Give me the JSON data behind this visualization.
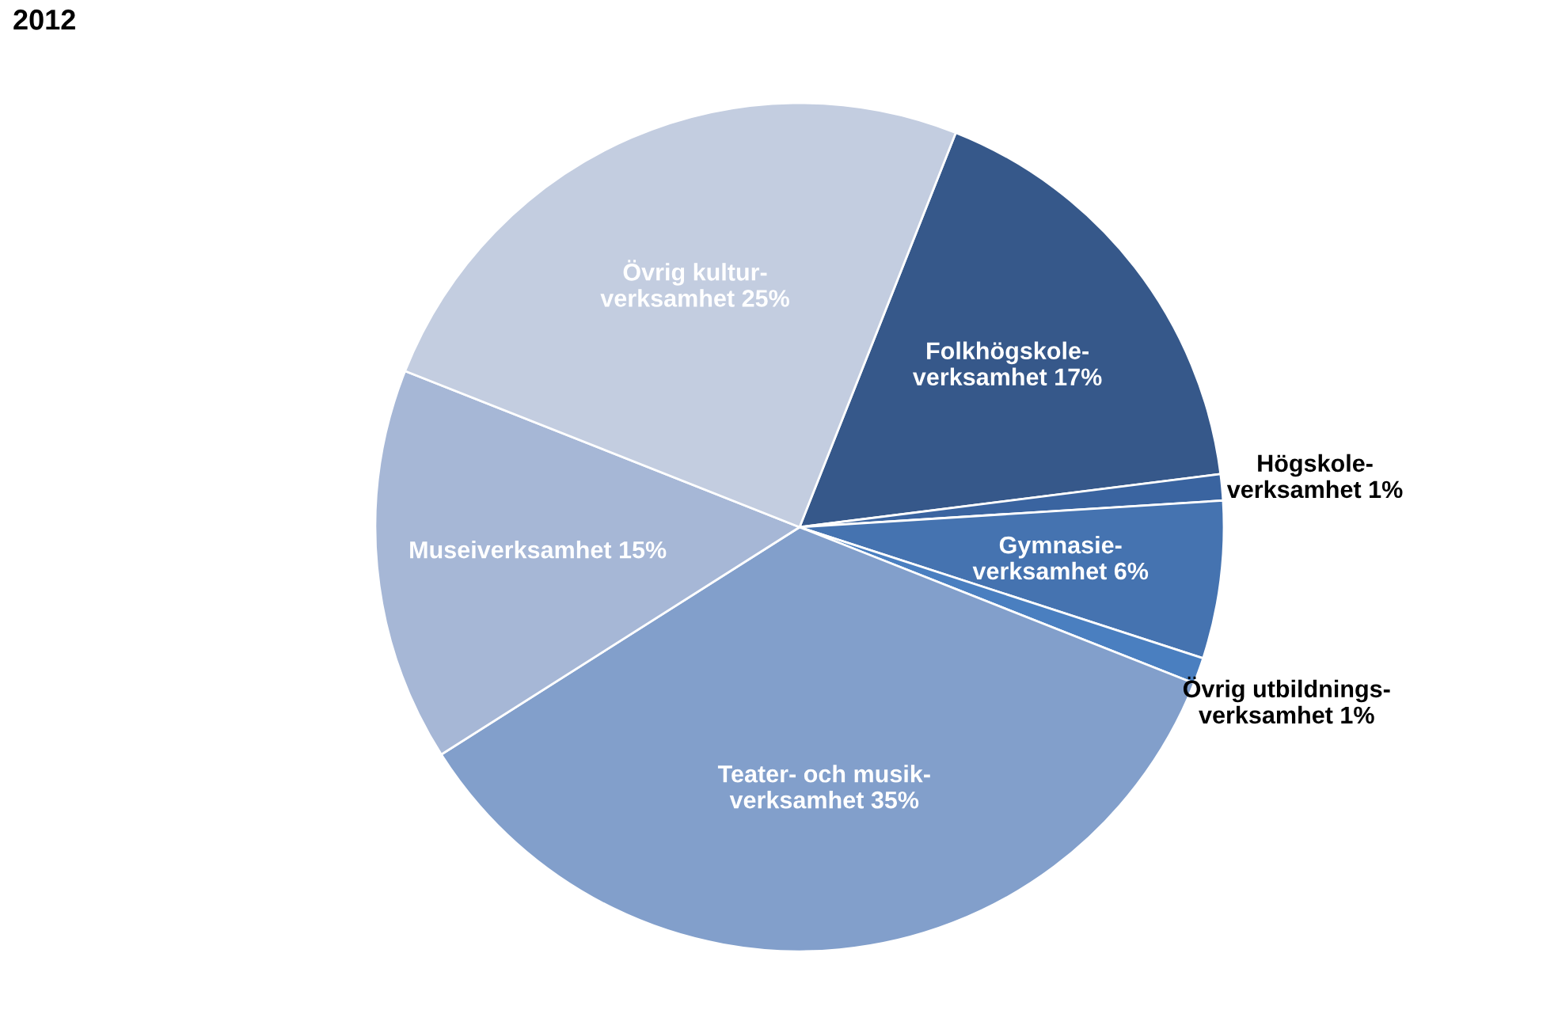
{
  "chart_data": {
    "type": "pie",
    "title": "2012",
    "categories": [
      "Folkhögskole-\nverksamhet",
      "Högskole-\nverksamhet",
      "Gymnasie-\nverksamhet",
      "Övrig utbildnings-\nverksamhet",
      "Teater- och musik-\nverksamhet",
      "Museiverksamhet",
      "Övrig kultur-\nverksamhet"
    ],
    "values": [
      17,
      1,
      6,
      1,
      35,
      15,
      25
    ],
    "value_labels": [
      "17%",
      "1%",
      "6%",
      "1%",
      "35%",
      "15%",
      "25%"
    ],
    "colors": [
      "#36588a",
      "#3a64a0",
      "#4573b0",
      "#4a7fc0",
      "#829fcb",
      "#a6b7d6",
      "#c3cde0"
    ],
    "legend": false
  }
}
